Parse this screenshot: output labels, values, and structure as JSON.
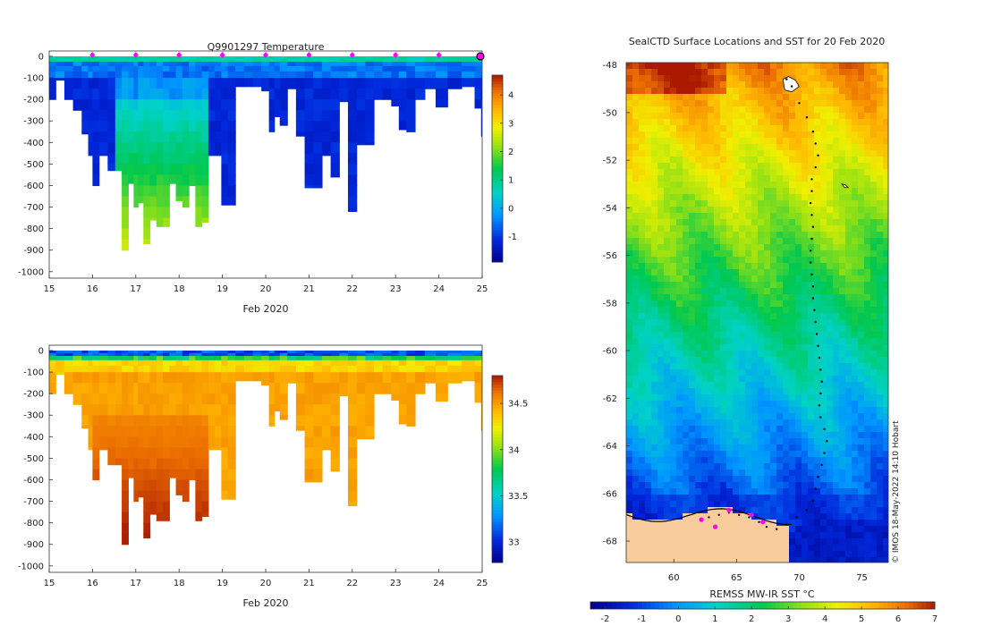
{
  "chart_data": [
    {
      "type": "heatmap",
      "name": "temperature-section",
      "title": "Q9901297  Temperature",
      "xlabel": "Feb 2020",
      "x_ticks": [
        "15",
        "16",
        "17",
        "18",
        "19",
        "20",
        "21",
        "22",
        "23",
        "24",
        "25"
      ],
      "xlim": [
        15,
        25
      ],
      "y_ticks": [
        "0",
        "-100",
        "-200",
        "-300",
        "-400",
        "-500",
        "-600",
        "-700",
        "-800",
        "-900",
        "-1000"
      ],
      "ylim": [
        -1030,
        0
      ],
      "colorbar_ticks": [
        "-1",
        "0",
        "1",
        "2",
        "3",
        "4"
      ],
      "colorbar_range": [
        -1.9,
        4.7
      ],
      "profile_markers_x": [
        16,
        17,
        18,
        19,
        20,
        21,
        22,
        23,
        24
      ],
      "end_marker_x": 25,
      "profiles": [
        {
          "x": 15.05,
          "depth": 200
        },
        {
          "x": 15.25,
          "depth": 110
        },
        {
          "x": 15.45,
          "depth": 200
        },
        {
          "x": 15.65,
          "depth": 250
        },
        {
          "x": 15.85,
          "depth": 360
        },
        {
          "x": 15.95,
          "depth": 460
        },
        {
          "x": 16.05,
          "depth": 600
        },
        {
          "x": 16.25,
          "depth": 460
        },
        {
          "x": 16.45,
          "depth": 530
        },
        {
          "x": 16.6,
          "depth": 530
        },
        {
          "x": 16.75,
          "depth": 900
        },
        {
          "x": 16.9,
          "depth": 590
        },
        {
          "x": 17.0,
          "depth": 700
        },
        {
          "x": 17.1,
          "depth": 680
        },
        {
          "x": 17.25,
          "depth": 870
        },
        {
          "x": 17.4,
          "depth": 760
        },
        {
          "x": 17.55,
          "depth": 790
        },
        {
          "x": 17.7,
          "depth": 790
        },
        {
          "x": 17.85,
          "depth": 590
        },
        {
          "x": 18.0,
          "depth": 670
        },
        {
          "x": 18.15,
          "depth": 700
        },
        {
          "x": 18.3,
          "depth": 600
        },
        {
          "x": 18.45,
          "depth": 790
        },
        {
          "x": 18.6,
          "depth": 770
        },
        {
          "x": 18.75,
          "depth": 460
        },
        {
          "x": 18.9,
          "depth": 460
        },
        {
          "x": 19.05,
          "depth": 690
        },
        {
          "x": 19.2,
          "depth": 690
        },
        {
          "x": 19.4,
          "depth": 140
        },
        {
          "x": 19.6,
          "depth": 140
        },
        {
          "x": 19.8,
          "depth": 140
        },
        {
          "x": 20.0,
          "depth": 160
        },
        {
          "x": 20.15,
          "depth": 350
        },
        {
          "x": 20.25,
          "depth": 280
        },
        {
          "x": 20.4,
          "depth": 320
        },
        {
          "x": 20.6,
          "depth": 150
        },
        {
          "x": 20.8,
          "depth": 370
        },
        {
          "x": 21.0,
          "depth": 610
        },
        {
          "x": 21.2,
          "depth": 610
        },
        {
          "x": 21.4,
          "depth": 460
        },
        {
          "x": 21.6,
          "depth": 560
        },
        {
          "x": 21.8,
          "depth": 210
        },
        {
          "x": 22.0,
          "depth": 720
        },
        {
          "x": 22.2,
          "depth": 410
        },
        {
          "x": 22.4,
          "depth": 410
        },
        {
          "x": 22.6,
          "depth": 200
        },
        {
          "x": 22.8,
          "depth": 200
        },
        {
          "x": 23.0,
          "depth": 230
        },
        {
          "x": 23.15,
          "depth": 340
        },
        {
          "x": 23.35,
          "depth": 350
        },
        {
          "x": 23.55,
          "depth": 200
        },
        {
          "x": 23.8,
          "depth": 150
        },
        {
          "x": 24.05,
          "depth": 235
        },
        {
          "x": 24.35,
          "depth": 150
        },
        {
          "x": 24.7,
          "depth": 140
        },
        {
          "x": 24.95,
          "depth": 240
        },
        {
          "x": 25.0,
          "depth": 370
        }
      ]
    },
    {
      "type": "heatmap",
      "name": "salinity-section",
      "title": "",
      "xlabel": "Feb 2020",
      "x_ticks": [
        "15",
        "16",
        "17",
        "18",
        "19",
        "20",
        "21",
        "22",
        "23",
        "24",
        "25"
      ],
      "xlim": [
        15,
        25
      ],
      "y_ticks": [
        "0",
        "-100",
        "-200",
        "-300",
        "-400",
        "-500",
        "-600",
        "-700",
        "-800",
        "-900",
        "-1000"
      ],
      "ylim": [
        -1030,
        0
      ],
      "colorbar_ticks": [
        "33",
        "33.5",
        "34",
        "34.5"
      ],
      "colorbar_range": [
        32.78,
        34.8
      ],
      "profiles_same_as": "temperature-section"
    },
    {
      "type": "heatmap",
      "name": "sst-map",
      "title": "SealCTD Surface Locations and SST for 20 Feb 2020",
      "xlabel": "",
      "x_ticks": [
        "60",
        "65",
        "70",
        "75"
      ],
      "xlim": [
        56.2,
        77.1
      ],
      "y_ticks": [
        "-48",
        "-50",
        "-52",
        "-54",
        "-56",
        "-58",
        "-60",
        "-62",
        "-64",
        "-66",
        "-68"
      ],
      "ylim": [
        -68.9,
        -47.9
      ],
      "colorbar_label": "REMSS MW-IR SST °C",
      "colorbar_ticks": [
        "-2",
        "-1",
        "0",
        "1",
        "2",
        "3",
        "4",
        "5",
        "6",
        "7"
      ],
      "colorbar_range": [
        -2.4,
        7.0
      ],
      "credit": "© IMOS 18-May-2022 14:10 Hobart",
      "track": [
        [
          69.0,
          -48.6
        ],
        [
          69.4,
          -48.9
        ],
        [
          70.0,
          -49.6
        ],
        [
          70.6,
          -50.2
        ],
        [
          71.1,
          -50.8
        ],
        [
          71.3,
          -51.3
        ],
        [
          71.5,
          -51.8
        ],
        [
          71.3,
          -52.3
        ],
        [
          71.0,
          -52.8
        ],
        [
          71.0,
          -53.3
        ],
        [
          70.9,
          -53.8
        ],
        [
          71.0,
          -54.3
        ],
        [
          71.1,
          -54.8
        ],
        [
          71.0,
          -55.3
        ],
        [
          70.9,
          -55.8
        ],
        [
          70.9,
          -56.3
        ],
        [
          71.0,
          -56.8
        ],
        [
          71.1,
          -57.3
        ],
        [
          71.1,
          -57.8
        ],
        [
          71.2,
          -58.3
        ],
        [
          71.3,
          -58.8
        ],
        [
          71.4,
          -59.3
        ],
        [
          71.5,
          -59.8
        ],
        [
          71.6,
          -60.3
        ],
        [
          71.7,
          -60.8
        ],
        [
          71.8,
          -61.3
        ],
        [
          71.7,
          -61.8
        ],
        [
          71.6,
          -62.3
        ],
        [
          71.7,
          -62.8
        ],
        [
          72.0,
          -63.3
        ],
        [
          72.2,
          -63.8
        ],
        [
          72.0,
          -64.3
        ],
        [
          71.8,
          -64.8
        ],
        [
          71.5,
          -65.3
        ],
        [
          71.3,
          -65.8
        ],
        [
          71.1,
          -66.3
        ],
        [
          70.6,
          -66.7
        ],
        [
          69.8,
          -67.0
        ],
        [
          69.0,
          -67.3
        ],
        [
          68.2,
          -67.5
        ],
        [
          67.4,
          -67.4
        ],
        [
          66.8,
          -67.2
        ],
        [
          66.0,
          -67.0
        ],
        [
          65.2,
          -66.9
        ],
        [
          64.4,
          -66.8
        ],
        [
          63.6,
          -66.9
        ],
        [
          62.8,
          -67.0
        ],
        [
          62.2,
          -67.1
        ]
      ],
      "magenta_points": [
        [
          62.2,
          -67.1
        ],
        [
          63.3,
          -67.4
        ],
        [
          64.4,
          -66.7
        ],
        [
          66.2,
          -66.9
        ],
        [
          67.1,
          -67.2
        ]
      ]
    }
  ]
}
